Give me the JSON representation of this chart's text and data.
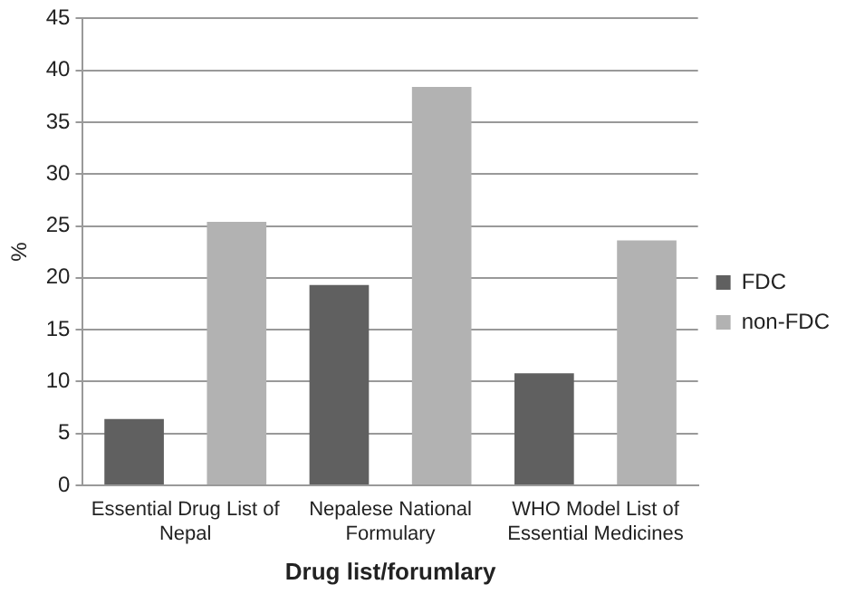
{
  "chart_data": {
    "type": "bar",
    "xlabel": "Drug list/forumlary",
    "ylabel": "%",
    "categories": [
      "Essential Drug List of Nepal",
      "Nepalese National Formulary",
      "WHO Model List of Essential Medicines"
    ],
    "series": [
      {
        "name": "FDC",
        "color": "#606060",
        "values": [
          6.4,
          19.3,
          10.8
        ]
      },
      {
        "name": "non-FDC",
        "color": "#b2b2b2",
        "values": [
          25.4,
          38.4,
          23.6
        ]
      }
    ],
    "ylim": [
      0,
      45
    ],
    "yticks": [
      0,
      5,
      10,
      15,
      20,
      25,
      30,
      35,
      40,
      45
    ],
    "grid": "y",
    "legend": "right"
  }
}
